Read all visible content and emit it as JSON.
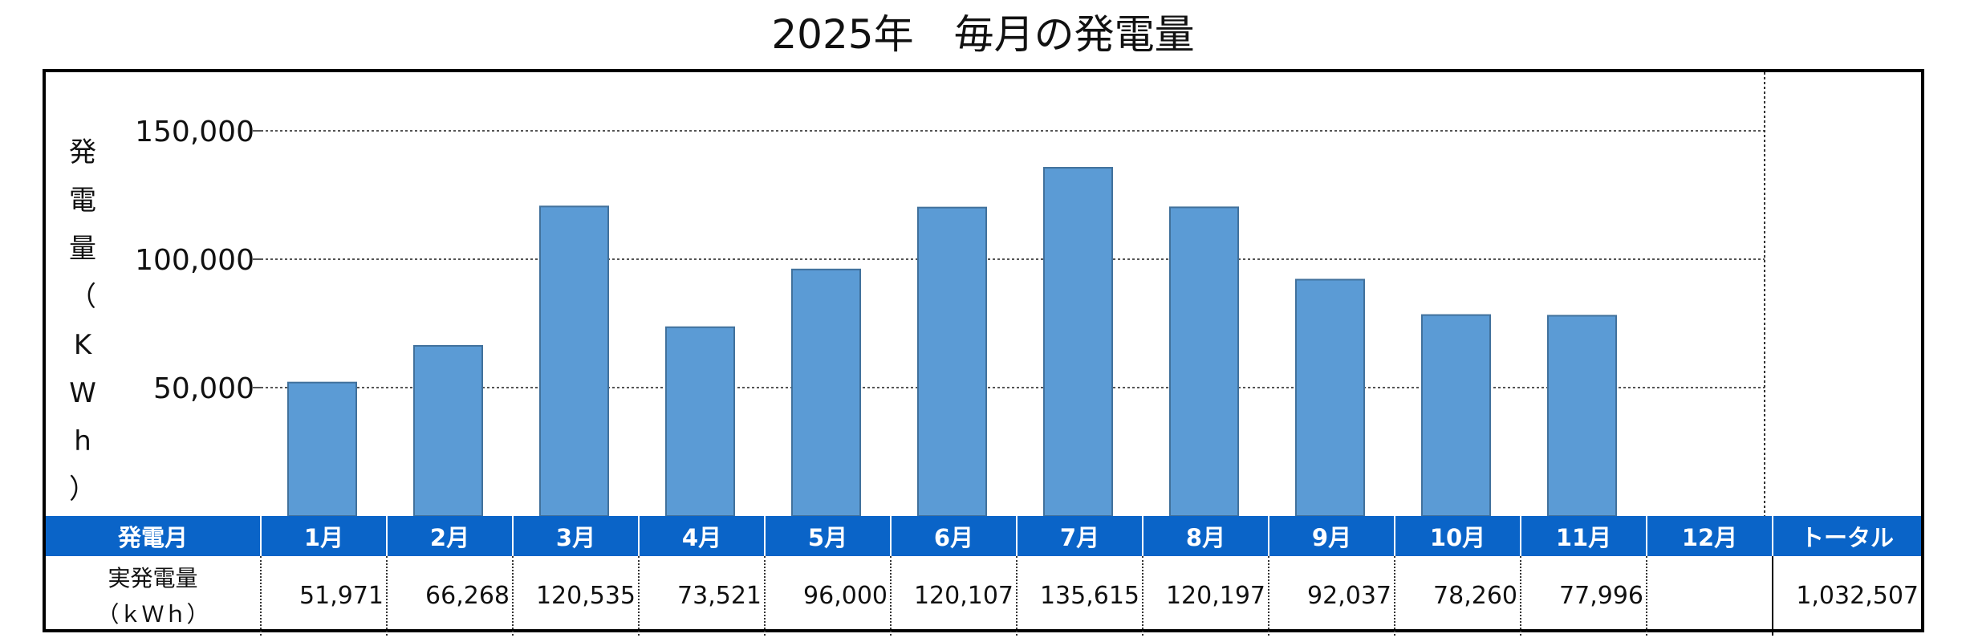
{
  "chart_data": {
    "type": "bar",
    "title": "2025年　毎月の発電量",
    "ylabel_chars": [
      "発",
      "電",
      "量",
      "（",
      "K",
      "W",
      "h",
      "）"
    ],
    "ylim": [
      0,
      150000
    ],
    "yticks": [
      50000,
      100000,
      150000
    ],
    "ytick_labels": [
      "50,000",
      "100,000",
      "150,000"
    ],
    "grid": true,
    "categories": [
      "1月",
      "2月",
      "3月",
      "4月",
      "5月",
      "6月",
      "7月",
      "8月",
      "9月",
      "10月",
      "11月",
      "12月"
    ],
    "values": [
      51971,
      66268,
      120535,
      73521,
      96000,
      120107,
      135615,
      120197,
      92037,
      78260,
      77996,
      null
    ],
    "bar_color": "#5b9bd5",
    "bar_edge_color": "#41719c"
  },
  "table": {
    "header_label": "発電月",
    "row_label_line1": "実発電量",
    "row_label_line2": "（ｋＷｈ）",
    "value_labels": [
      "51,971",
      "66,268",
      "120,535",
      "73,521",
      "96,000",
      "120,107",
      "135,615",
      "120,197",
      "92,037",
      "78,260",
      "77,996",
      ""
    ],
    "total_label": "トータル",
    "total_value": "1,032,507",
    "header_color": "#0a64c8"
  }
}
